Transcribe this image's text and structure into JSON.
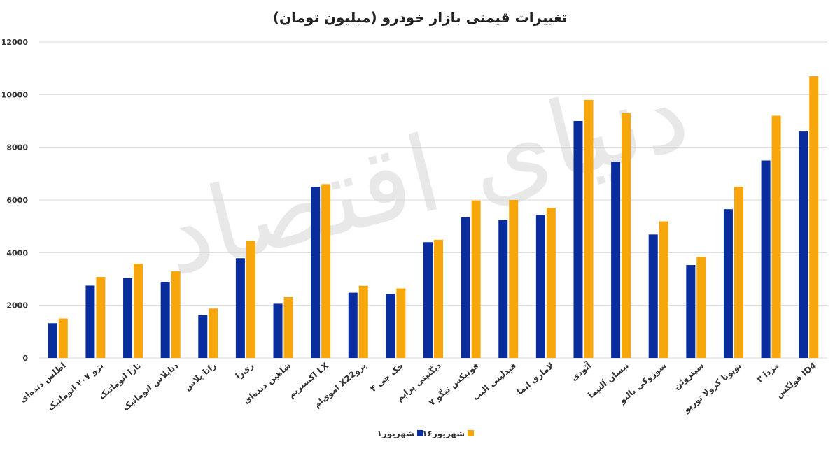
{
  "chart_data": {
    "type": "bar",
    "title": "تغییرات قیمتی بازار خودرو (میلیون تومان)",
    "watermark": "دنیای اقتصاد",
    "ylim": [
      0,
      12000
    ],
    "yticks": [
      "0",
      "2000",
      "4000",
      "6000",
      "8000",
      "10000",
      "12000"
    ],
    "grid": true,
    "legend_position": "bottom-center",
    "categories": [
      "اطلس دنده‌ای",
      "پژو ۲۰۷ اتوماتیک",
      "تارا اتوماتیک",
      "دناپلاس اتوماتیک",
      "رانا پلاس",
      "ری‌را",
      "شاهین دنده‌ای",
      "اکستریم LX",
      "اموی‌ام X22پرو",
      "جک جی ۴",
      "دیگنیتی پرایم",
      "فونیکس تیگو ۷",
      "فیدلیتی الیت",
      "لاماری ایما",
      "آئودی",
      "نیسان آلتیما",
      "سوزوکی بالنو",
      "سیتروئن",
      "تویوتا کرولا توربو",
      "مزدا ۳",
      "فولکس ID4"
    ],
    "series": [
      {
        "name": "۱شهریور",
        "color": "#0a2d9e",
        "values": [
          1320,
          2750,
          3030,
          2890,
          1630,
          3790,
          2060,
          6500,
          2480,
          2440,
          4400,
          5340,
          5240,
          5440,
          9000,
          7450,
          4690,
          3530,
          5650,
          7500,
          8600
        ]
      },
      {
        "name": "۱۶شهریور",
        "color": "#f7a70b",
        "values": [
          1500,
          3080,
          3580,
          3290,
          1880,
          4450,
          2310,
          6600,
          2740,
          2640,
          4490,
          5980,
          6000,
          5700,
          9800,
          9300,
          5190,
          3840,
          6500,
          9200,
          10700
        ]
      }
    ]
  }
}
